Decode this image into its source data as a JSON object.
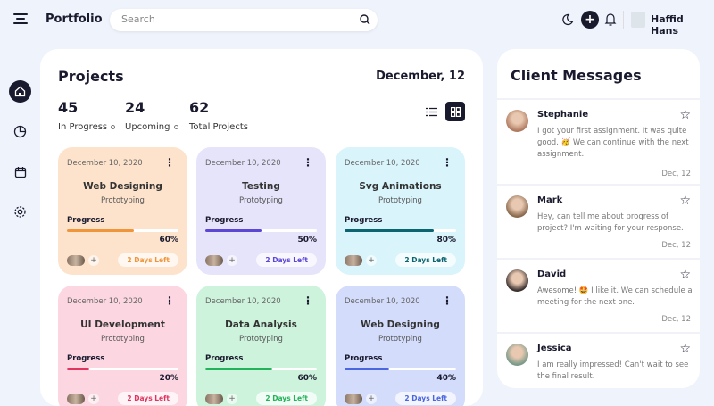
{
  "header": {
    "app_title": "Portfolio",
    "search_placeholder": "Search",
    "user_name": "Haffid Hans"
  },
  "projects": {
    "title": "Projects",
    "date": "December, 12",
    "stats": [
      {
        "value": "45",
        "label": "In Progress"
      },
      {
        "value": "24",
        "label": "Upcoming"
      },
      {
        "value": "62",
        "label": "Total Projects"
      }
    ],
    "progress_label": "Progress",
    "cards": [
      {
        "date": "December 10, 2020",
        "title": "Web Designing",
        "subtitle": "Prototyping",
        "progress": 60,
        "progress_text": "60%",
        "days_left": "2 Days Left",
        "bg": "#fde3cc",
        "accent": "#f0953a"
      },
      {
        "date": "December 10, 2020",
        "title": "Testing",
        "subtitle": "Prototyping",
        "progress": 50,
        "progress_text": "50%",
        "days_left": "2 Days Left",
        "bg": "#e6e4fb",
        "accent": "#5b46d6"
      },
      {
        "date": "December 10, 2020",
        "title": "Svg Animations",
        "subtitle": "Prototyping",
        "progress": 80,
        "progress_text": "80%",
        "days_left": "2 Days Left",
        "bg": "#d9f4fb",
        "accent": "#0b6470"
      },
      {
        "date": "December 10, 2020",
        "title": "UI Development",
        "subtitle": "Prototyping",
        "progress": 20,
        "progress_text": "20%",
        "days_left": "2 Days Left",
        "bg": "#fcd7e2",
        "accent": "#e0345f"
      },
      {
        "date": "December 10, 2020",
        "title": "Data Analysis",
        "subtitle": "Prototyping",
        "progress": 60,
        "progress_text": "60%",
        "days_left": "2 Days Left",
        "bg": "#cdf3dc",
        "accent": "#22b35a"
      },
      {
        "date": "December 10, 2020",
        "title": "Web Designing",
        "subtitle": "Prototyping",
        "progress": 40,
        "progress_text": "40%",
        "days_left": "2 Days Left",
        "bg": "#d3dcfb",
        "accent": "#4a66e0"
      }
    ]
  },
  "messages": {
    "title": "Client Messages",
    "items": [
      {
        "name": "Stephanie",
        "text": "I got your first assignment. It was quite good. 🥳 We can continue with the next assignment.",
        "date": "Dec, 12"
      },
      {
        "name": "Mark",
        "text": "Hey, can tell me about progress of project? I'm waiting for your response.",
        "date": "Dec, 12"
      },
      {
        "name": "David",
        "text": "Awesome! 🤩 I like it. We can schedule a meeting for the next one.",
        "date": "Dec, 12"
      },
      {
        "name": "Jessica",
        "text": "I am really impressed! Can't wait to see the final result.",
        "date": ""
      }
    ]
  }
}
